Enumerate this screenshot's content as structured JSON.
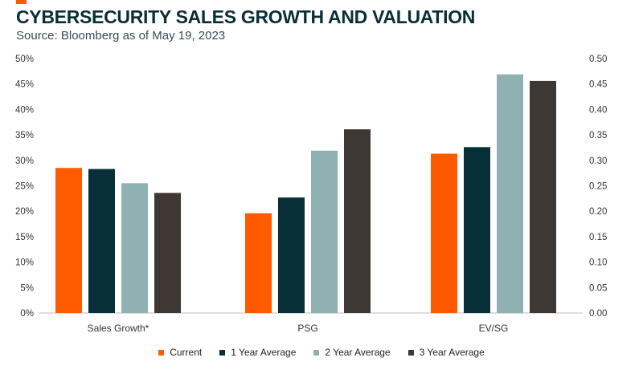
{
  "header": {
    "title": "CYBERSECURITY SALES GROWTH AND VALUATION",
    "subtitle": "Source: Bloomberg as of May 19, 2023"
  },
  "colors": {
    "accent": "#ff5a00",
    "series": [
      "#ff5a00",
      "#062f38",
      "#8fb1b1",
      "#3d3834"
    ]
  },
  "chart_data": {
    "type": "bar",
    "title": "CYBERSECURITY SALES GROWTH AND VALUATION",
    "categories": [
      "Sales Growth*",
      "PSG",
      "EV/SG"
    ],
    "series": [
      {
        "name": "Current",
        "values": [
          28.5,
          19.6,
          31.3
        ]
      },
      {
        "name": "1 Year Average",
        "values": [
          28.3,
          22.7,
          32.6
        ]
      },
      {
        "name": "2 Year Average",
        "values": [
          25.5,
          31.9,
          46.9
        ]
      },
      {
        "name": "3 Year Average",
        "values": [
          23.6,
          36.1,
          45.6
        ]
      }
    ],
    "y_left": {
      "range": [
        0,
        50
      ],
      "ticks": [
        "0%",
        "5%",
        "10%",
        "15%",
        "20%",
        "25%",
        "30%",
        "35%",
        "40%",
        "45%",
        "50%"
      ]
    },
    "y_right": {
      "range": [
        0,
        0.5
      ],
      "ticks": [
        "0.00",
        "0.05",
        "0.10",
        "0.15",
        "0.20",
        "0.25",
        "0.30",
        "0.35",
        "0.40",
        "0.45",
        "0.50"
      ]
    },
    "xlabel": "",
    "ylabel": "",
    "grid": false,
    "legend_position": "bottom"
  }
}
